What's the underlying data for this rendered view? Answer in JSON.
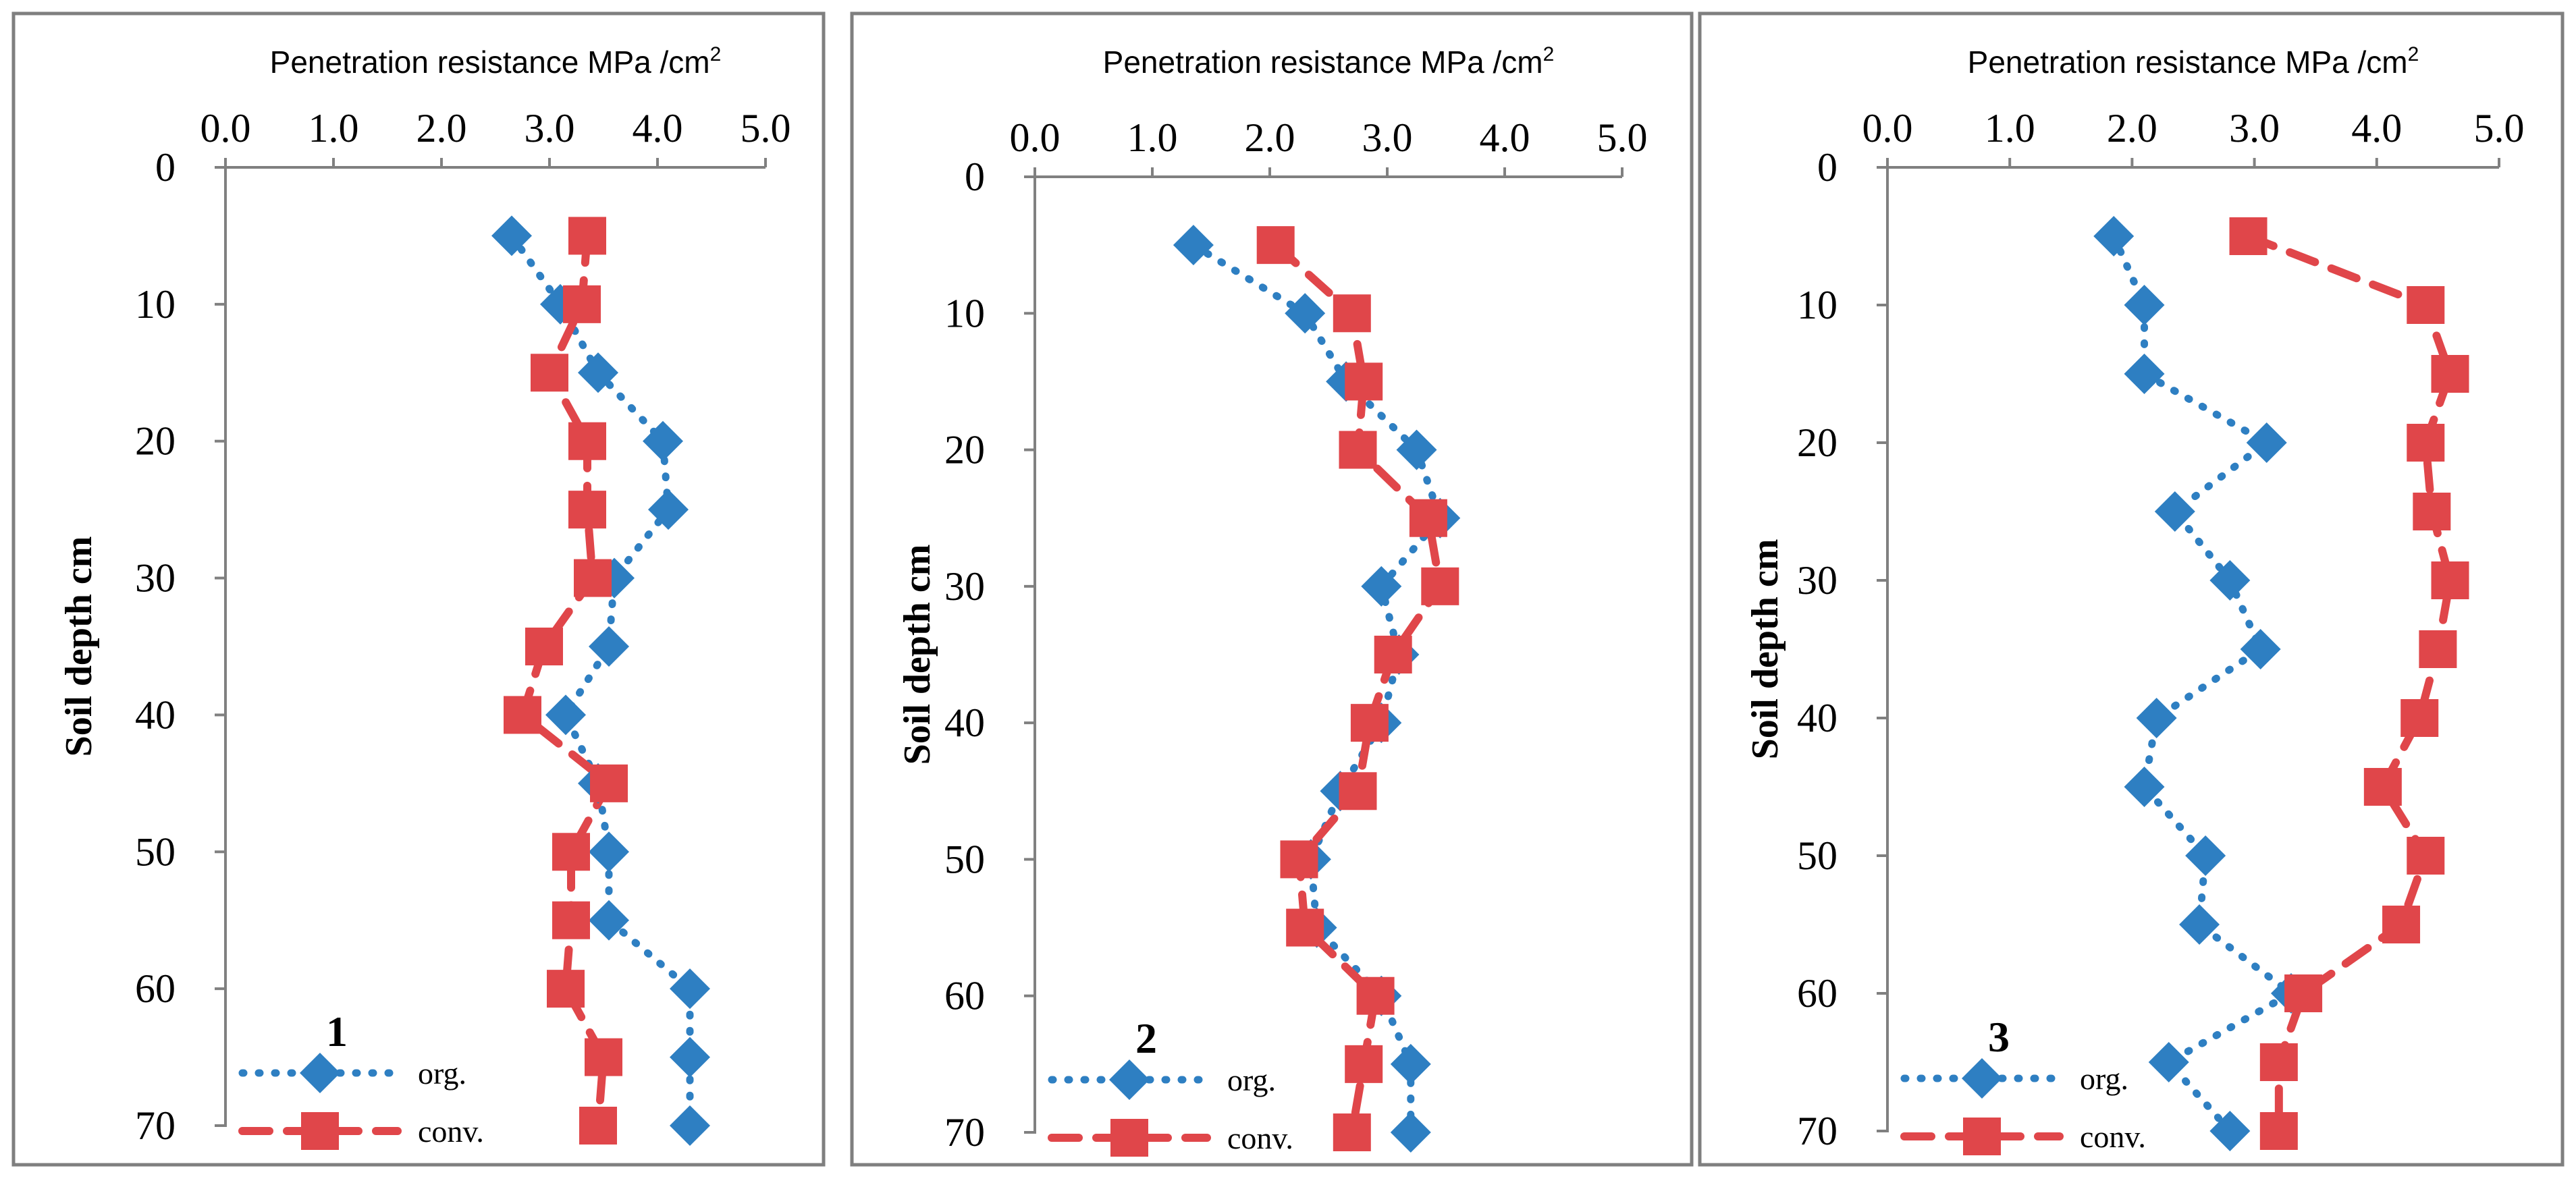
{
  "colors": {
    "org": "#2E7FC2",
    "conv": "#E0464A",
    "frame": "#7F7F7F",
    "axis": "#808080"
  },
  "chart_data": [
    {
      "type": "line",
      "panel_label": "1",
      "title": "",
      "xlabel": "Penetration resistance MPa /cm",
      "xlabel_sup": "2",
      "ylabel": "Soil depth cm",
      "xlim": [
        0,
        5
      ],
      "ylim": [
        0,
        70
      ],
      "x_axis_position": "top",
      "y_axis_inverted": true,
      "x_ticks": [
        0,
        1,
        2,
        3,
        4,
        5
      ],
      "x_tick_labels": [
        "0.0",
        "1.0",
        "2.0",
        "3.0",
        "4.0",
        "5.0"
      ],
      "y_ticks": [
        0,
        10,
        20,
        30,
        40,
        50,
        60,
        70
      ],
      "y_tick_labels": [
        "0",
        "10",
        "20",
        "30",
        "40",
        "50",
        "60",
        "70"
      ],
      "legend": "bottom-left",
      "depth": [
        5,
        10,
        15,
        20,
        25,
        30,
        35,
        40,
        45,
        50,
        55,
        60,
        65,
        70
      ],
      "series": [
        {
          "name": "org.",
          "key": "org",
          "marker": "diamond",
          "line": "dotted",
          "values": [
            2.65,
            3.1,
            3.45,
            4.05,
            4.1,
            3.6,
            3.55,
            3.15,
            3.45,
            3.55,
            3.55,
            4.3,
            4.3,
            4.3
          ]
        },
        {
          "name": "conv.",
          "key": "conv",
          "marker": "square",
          "line": "dashed",
          "values": [
            3.35,
            3.3,
            3.0,
            3.35,
            3.35,
            3.4,
            2.95,
            2.75,
            3.55,
            3.2,
            3.2,
            3.15,
            3.5,
            3.45
          ]
        }
      ]
    },
    {
      "type": "line",
      "panel_label": "2",
      "title": "",
      "xlabel": "Penetration resistance MPa /cm",
      "xlabel_sup": "2",
      "ylabel": "Soil depth cm",
      "xlim": [
        0,
        5
      ],
      "ylim": [
        0,
        70
      ],
      "x_axis_position": "top",
      "y_axis_inverted": true,
      "x_ticks": [
        0,
        1,
        2,
        3,
        4,
        5
      ],
      "x_tick_labels": [
        "0.0",
        "1.0",
        "2.0",
        "3.0",
        "4.0",
        "5.0"
      ],
      "y_ticks": [
        0,
        10,
        20,
        30,
        40,
        50,
        60,
        70
      ],
      "y_tick_labels": [
        "0",
        "10",
        "20",
        "30",
        "40",
        "50",
        "60",
        "70"
      ],
      "legend": "bottom-left",
      "depth": [
        5,
        10,
        15,
        20,
        25,
        30,
        35,
        40,
        45,
        50,
        55,
        60,
        65,
        70
      ],
      "series": [
        {
          "name": "org.",
          "key": "org",
          "marker": "diamond",
          "line": "dotted",
          "values": [
            1.35,
            2.3,
            2.65,
            3.25,
            3.45,
            2.95,
            3.1,
            2.95,
            2.6,
            2.35,
            2.4,
            2.95,
            3.2,
            3.2
          ]
        },
        {
          "name": "conv.",
          "key": "conv",
          "marker": "square",
          "line": "dashed",
          "values": [
            2.05,
            2.7,
            2.8,
            2.75,
            3.35,
            3.45,
            3.05,
            2.85,
            2.75,
            2.25,
            2.3,
            2.9,
            2.8,
            2.7
          ]
        }
      ]
    },
    {
      "type": "line",
      "panel_label": "3",
      "title": "",
      "xlabel": "Penetration resistance MPa /cm",
      "xlabel_sup": "2",
      "ylabel": "Soil depth cm",
      "xlim": [
        0,
        5
      ],
      "ylim": [
        0,
        70
      ],
      "x_axis_position": "top",
      "y_axis_inverted": true,
      "x_ticks": [
        0,
        1,
        2,
        3,
        4,
        5
      ],
      "x_tick_labels": [
        "0.0",
        "1.0",
        "2.0",
        "3.0",
        "4.0",
        "5.0"
      ],
      "y_ticks": [
        0,
        10,
        20,
        30,
        40,
        50,
        60,
        70
      ],
      "y_tick_labels": [
        "0",
        "10",
        "20",
        "30",
        "40",
        "50",
        "60",
        "70"
      ],
      "legend": "bottom-left",
      "depth": [
        5,
        10,
        15,
        20,
        25,
        30,
        35,
        40,
        45,
        50,
        55,
        60,
        65,
        70
      ],
      "series": [
        {
          "name": "org.",
          "key": "org",
          "marker": "diamond",
          "line": "dotted",
          "values": [
            1.85,
            2.1,
            2.1,
            3.1,
            2.35,
            2.8,
            3.05,
            2.2,
            2.1,
            2.6,
            2.55,
            3.3,
            2.3,
            2.8
          ]
        },
        {
          "name": "conv.",
          "key": "conv",
          "marker": "square",
          "line": "dashed",
          "values": [
            2.95,
            4.4,
            4.6,
            4.4,
            4.45,
            4.6,
            4.5,
            4.35,
            4.05,
            4.4,
            4.2,
            3.4,
            3.2,
            3.2
          ]
        }
      ]
    }
  ]
}
